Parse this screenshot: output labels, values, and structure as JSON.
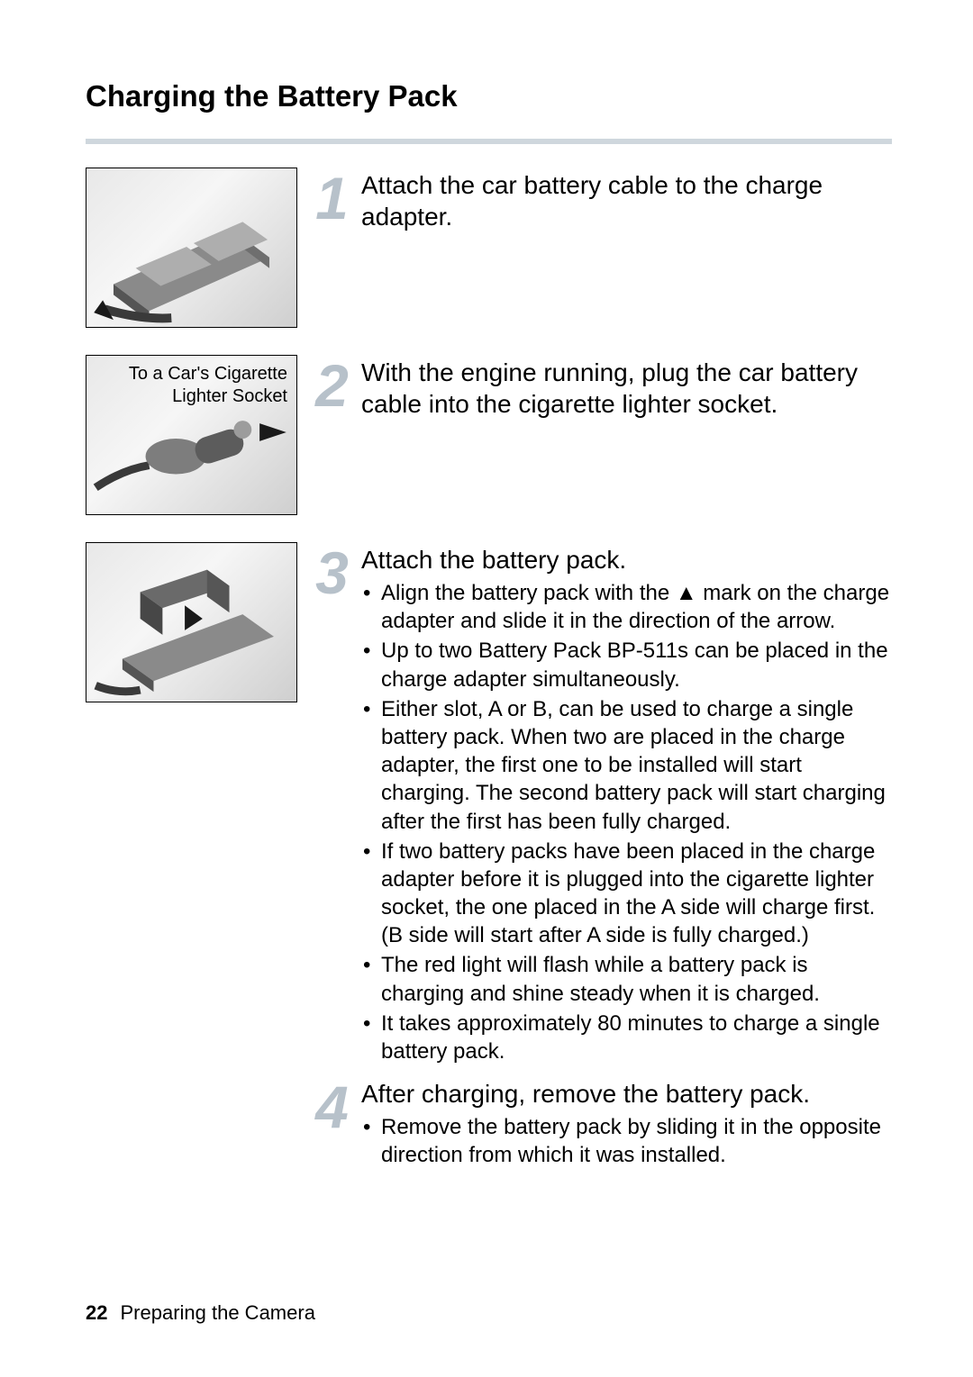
{
  "colors": {
    "rule": "#cfd7dd",
    "step_number": "#b7c1ca",
    "text": "#000000",
    "background": "#ffffff",
    "image_border": "#000000"
  },
  "typography": {
    "heading_fontsize": 33,
    "heading_weight": 700,
    "step_title_fontsize": 28,
    "bullet_fontsize": 24,
    "step_number_fontsize": 66,
    "image_caption_fontsize": 20,
    "footer_fontsize": 22
  },
  "heading": "Charging the Battery Pack",
  "steps": [
    {
      "number": "1",
      "image_caption": "",
      "title": "Attach the car battery cable to the charge adapter.",
      "bullets": []
    },
    {
      "number": "2",
      "image_caption": "To a Car's Cigarette\nLighter Socket",
      "title": "With the engine running, plug the car battery cable into the cigarette lighter socket.",
      "bullets": []
    },
    {
      "number": "3",
      "image_caption": "",
      "title": "Attach the battery pack.",
      "bullets": [
        "Align the battery pack with the ▲ mark on the charge adapter and slide it in the direction of the arrow.",
        "Up to two Battery Pack BP-511s can be placed in the charge adapter simultaneously.",
        "Either slot, A or B, can be used to charge a single battery pack. When two are placed in the charge adapter, the first one to be installed will start charging. The second battery pack will start charging after the first has been fully charged.",
        "If two battery packs have been placed in the charge adapter before it is plugged into the cigarette lighter socket, the one placed in the A side will charge first. (B side will start after A side is fully charged.)",
        "The red light will flash while a battery pack is charging and shine steady when it is charged.",
        "It takes approximately 80 minutes to charge a single battery pack."
      ]
    },
    {
      "number": "4",
      "image_caption": "",
      "title": "After charging, remove the battery pack.",
      "bullets": [
        "Remove the battery pack by sliding it in the opposite direction from which it was installed."
      ]
    }
  ],
  "footer": {
    "page_number": "22",
    "section": "Preparing the Camera"
  }
}
